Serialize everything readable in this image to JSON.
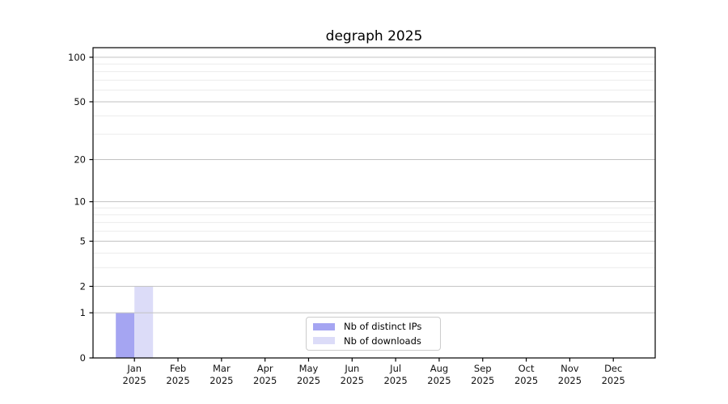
{
  "chart_data": {
    "type": "bar",
    "title": "degraph 2025",
    "x_axis": {
      "categories": [
        "Jan",
        "Feb",
        "Mar",
        "Apr",
        "May",
        "Jun",
        "Jul",
        "Aug",
        "Sep",
        "Oct",
        "Nov",
        "Dec"
      ],
      "year": "2025"
    },
    "y_axis": {
      "scale": "log1p",
      "ticks": [
        0,
        1,
        2,
        5,
        10,
        20,
        50,
        100
      ],
      "minor_ticks": [
        3,
        4,
        6,
        7,
        8,
        9,
        30,
        40,
        60,
        70,
        80,
        90
      ],
      "ylim": [
        0,
        116
      ],
      "grid": true
    },
    "series": [
      {
        "name": "Nb of distinct IPs",
        "color": "#a5a5f2",
        "values": [
          1,
          0,
          0,
          0,
          0,
          0,
          0,
          0,
          0,
          0,
          0,
          0
        ]
      },
      {
        "name": "Nb of downloads",
        "color": "#dcdcf8",
        "values": [
          2,
          0,
          0,
          0,
          0,
          0,
          0,
          0,
          0,
          0,
          0,
          0
        ]
      }
    ],
    "legend": {
      "position": "lower center",
      "entries": [
        "Nb of distinct IPs",
        "Nb of downloads"
      ]
    }
  }
}
